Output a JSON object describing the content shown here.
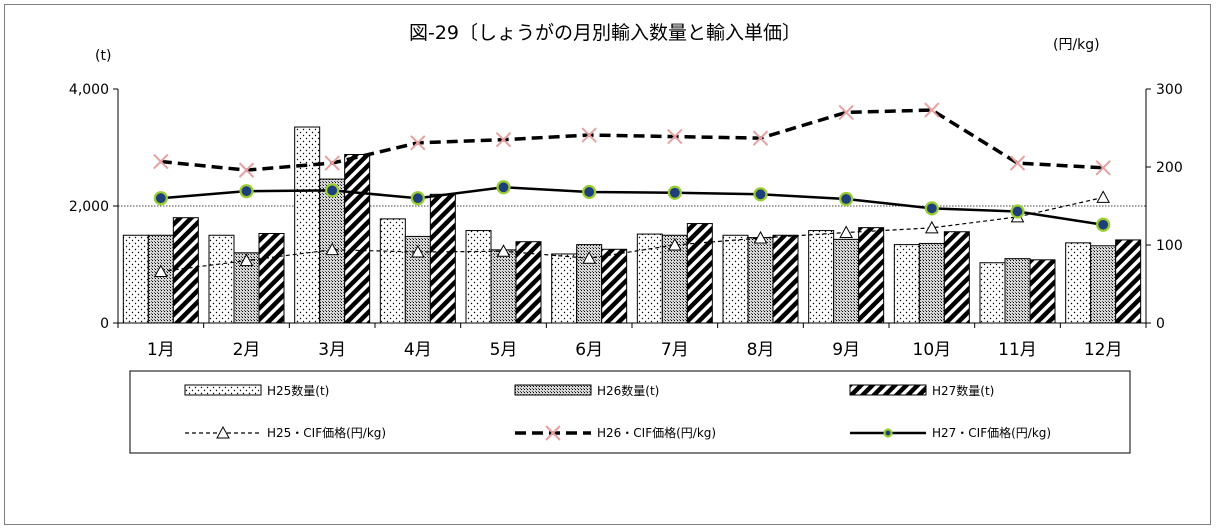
{
  "chart_data": {
    "type": "bar",
    "title": "図-29〔しょうがの月別輸入数量と輸入単価〕",
    "ylabel": "(t)",
    "y2label": "(円/kg)",
    "ylim": [
      0,
      4000
    ],
    "y2lim": [
      0,
      300
    ],
    "yticks": [
      "0",
      "2,000",
      "4,000"
    ],
    "y2ticks": [
      "0",
      "100",
      "200",
      "300"
    ],
    "categories": [
      "1月",
      "2月",
      "3月",
      "4月",
      "5月",
      "6月",
      "7月",
      "8月",
      "9月",
      "10月",
      "11月",
      "12月"
    ],
    "bar_series": [
      {
        "name": "H25数量(t)",
        "values": [
          1500,
          1500,
          3350,
          1780,
          1580,
          1180,
          1520,
          1500,
          1580,
          1340,
          1030,
          1370
        ]
      },
      {
        "name": "H26数量(t)",
        "values": [
          1500,
          1200,
          2460,
          1480,
          1250,
          1340,
          1500,
          1460,
          1430,
          1360,
          1100,
          1320
        ]
      },
      {
        "name": "H27数量(t)",
        "values": [
          1800,
          1530,
          2880,
          2200,
          1390,
          1260,
          1700,
          1500,
          1630,
          1560,
          1080,
          1420
        ]
      }
    ],
    "line_series": [
      {
        "name": "H25・CIF価格(円/kg)",
        "values": [
          66,
          80,
          94,
          91,
          92,
          83,
          100,
          109,
          116,
          122,
          136,
          161
        ]
      },
      {
        "name": "H26・CIF価格(円/kg)",
        "values": [
          207,
          196,
          205,
          231,
          235,
          241,
          239,
          237,
          270,
          273,
          205,
          199
        ]
      },
      {
        "name": "H27・CIF価格(円/kg)",
        "values": [
          160,
          169,
          170,
          160,
          174,
          168,
          167,
          165,
          159,
          147,
          143,
          126
        ]
      }
    ],
    "grid": "horizontal dotted line at 2,000",
    "legend_position": "bottom"
  }
}
